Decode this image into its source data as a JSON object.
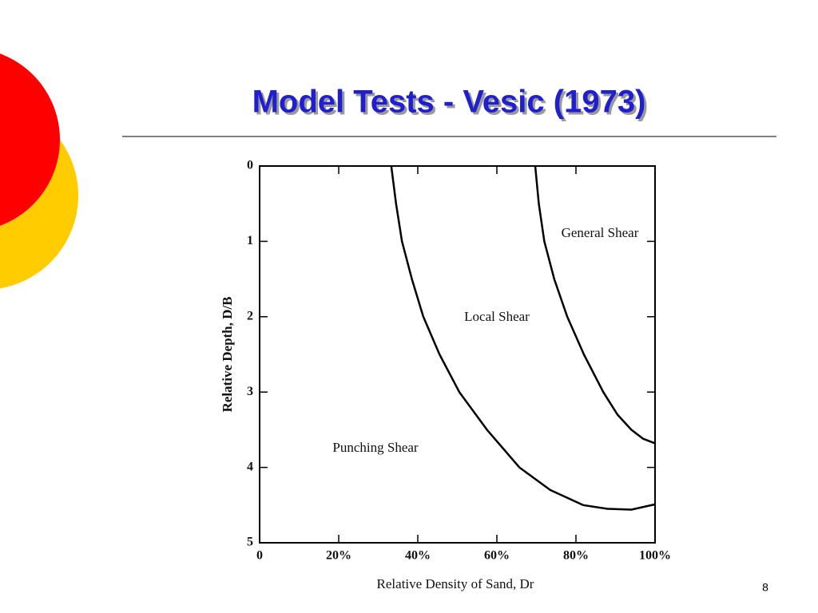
{
  "chart_data": {
    "type": "line",
    "title": "Model Tests - Vesic (1973)",
    "xlabel": "Relative Density of Sand, Dr",
    "ylabel": "Relative Depth, D/B",
    "xlim": [
      0,
      100
    ],
    "xticks": [
      0,
      {
        "value": 20,
        "label": "20%"
      },
      {
        "value": 40,
        "label": "40%"
      },
      {
        "value": 60,
        "label": "60%"
      },
      {
        "value": 80,
        "label": "80%"
      },
      {
        "value": 100,
        "label": "100%"
      }
    ],
    "ylim": [
      0,
      5
    ],
    "yticks": [
      0,
      1,
      2,
      3,
      4,
      5
    ],
    "y_reversed": true,
    "series": [
      {
        "color": "#000000",
        "x": [
          33.3,
          34.5,
          36,
          38.5,
          41.4,
          45.5,
          50.5,
          57.5,
          65.7,
          73.5,
          81.8,
          88,
          94,
          100
        ],
        "values": [
          0,
          0.5,
          1,
          1.5,
          2,
          2.5,
          3,
          3.5,
          4,
          4.3,
          4.5,
          4.55,
          4.56,
          4.49
        ]
      },
      {
        "color": "#000000",
        "x": [
          69.7,
          70.6,
          72,
          74.5,
          77.8,
          82,
          86.9,
          90.5,
          94,
          97,
          100
        ],
        "values": [
          0,
          0.5,
          1,
          1.5,
          2,
          2.5,
          3,
          3.3,
          3.5,
          3.62,
          3.68
        ]
      }
    ],
    "annotations": [
      "General Shear",
      "Local Shear",
      "Punching Shear"
    ]
  },
  "slide_number": "8"
}
